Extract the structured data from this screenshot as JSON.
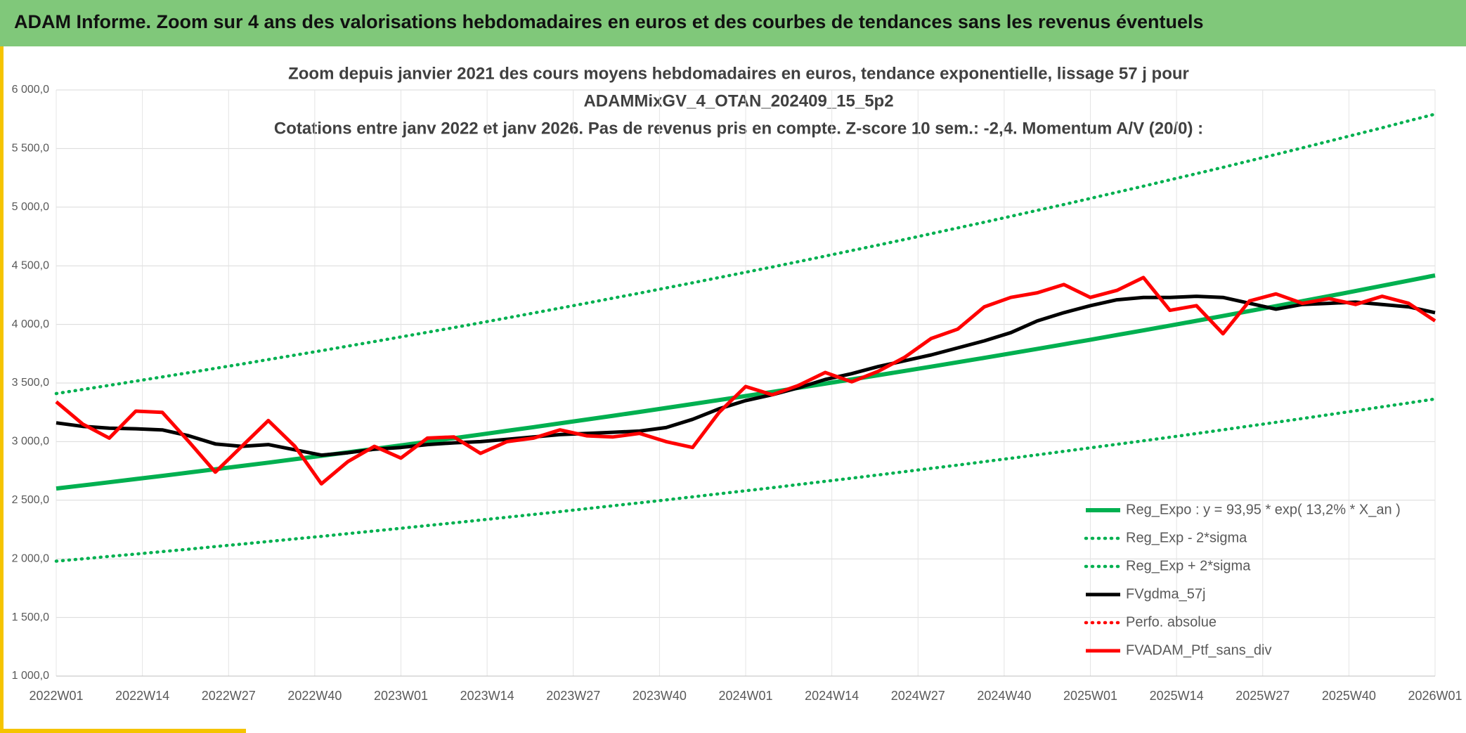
{
  "header": {
    "title": "ADAM Informe. Zoom sur 4 ans des valorisations hebdomadaires en euros et des courbes de tendances sans les revenus éventuels"
  },
  "chart_data": {
    "type": "line",
    "title": [
      "Zoom depuis janvier 2021 des cours moyens hebdomadaires en euros, tendance exponentielle, lissage 57 j pour",
      "ADAMMixGV_4_OTAN_202409_15_5p2",
      "Cotations entre janv 2022 et janv 2026. Pas de revenus pris en compte. Z-score 10 sem.: -2,4. Momentum A/V (20/0) :"
    ],
    "x": [
      0,
      4,
      8,
      12,
      16,
      20,
      24,
      28,
      32,
      36,
      40,
      44,
      48,
      52,
      56,
      60,
      64,
      68,
      72,
      76,
      80,
      84,
      88,
      92,
      96,
      100,
      104,
      108,
      112,
      116,
      120,
      124,
      128,
      132,
      136,
      140,
      144,
      148,
      152,
      156,
      160,
      164,
      168,
      172,
      176,
      180,
      184,
      188,
      192,
      196,
      200,
      204,
      208
    ],
    "xlim": [
      0,
      208
    ],
    "xticks": [
      {
        "value": 0,
        "label": "2022W01"
      },
      {
        "value": 13,
        "label": "2022W14"
      },
      {
        "value": 26,
        "label": "2022W27"
      },
      {
        "value": 39,
        "label": "2022W40"
      },
      {
        "value": 52,
        "label": "2023W01"
      },
      {
        "value": 65,
        "label": "2023W14"
      },
      {
        "value": 78,
        "label": "2023W27"
      },
      {
        "value": 91,
        "label": "2023W40"
      },
      {
        "value": 104,
        "label": "2024W01"
      },
      {
        "value": 117,
        "label": "2024W14"
      },
      {
        "value": 130,
        "label": "2024W27"
      },
      {
        "value": 143,
        "label": "2024W40"
      },
      {
        "value": 156,
        "label": "2025W01"
      },
      {
        "value": 169,
        "label": "2025W14"
      },
      {
        "value": 182,
        "label": "2025W27"
      },
      {
        "value": 195,
        "label": "2025W40"
      },
      {
        "value": 208,
        "label": "2026W01"
      }
    ],
    "ylim": [
      1000,
      6000
    ],
    "yticks": [
      {
        "value": 1000,
        "label": "1 000,0"
      },
      {
        "value": 1500,
        "label": "1 500,0"
      },
      {
        "value": 2000,
        "label": "2 000,0"
      },
      {
        "value": 2500,
        "label": "2 500,0"
      },
      {
        "value": 3000,
        "label": "3 000,0"
      },
      {
        "value": 3500,
        "label": "3 500,0"
      },
      {
        "value": 4000,
        "label": "4 000,0"
      },
      {
        "value": 4500,
        "label": "4 500,0"
      },
      {
        "value": 5000,
        "label": "5 000,0"
      },
      {
        "value": 5500,
        "label": "5 500,0"
      },
      {
        "value": 6000,
        "label": "6 000,0"
      }
    ],
    "grid": true,
    "legend": "lower right",
    "series": [
      {
        "name": "Reg_Expo : y = 93,95 * exp( 13,2% *  X_an )",
        "color": "#00b050",
        "style": "solid",
        "values": [
          2600,
          2626.7,
          2653.6,
          2680.8,
          2708.3,
          2736,
          2764.1,
          2792.4,
          2821,
          2849.9,
          2879.1,
          2908.6,
          2938.4,
          2968.5,
          2998.9,
          3029.6,
          3060.7,
          3092.1,
          3123.8,
          3155.8,
          3188.1,
          3220.8,
          3253.8,
          3287.1,
          3320.8,
          3354.8,
          3389.2,
          3423.9,
          3459,
          3494.5,
          3530.3,
          3566.5,
          3603,
          3639.9,
          3677.2,
          3714.9,
          3753,
          3791.5,
          3830.3,
          3869.6,
          3909.3,
          3949.3,
          3989.8,
          4030.7,
          4072,
          4113.7,
          4155.9,
          4198.5,
          4241.5,
          4285,
          4328.9,
          4373.3,
          4418.1
        ]
      },
      {
        "name": "Reg_Exp - 2*sigma",
        "color": "#00b050",
        "style": "dotted",
        "values": [
          1980,
          2000,
          2021,
          2041,
          2062,
          2083,
          2105,
          2126,
          2148,
          2170,
          2192,
          2215,
          2238,
          2261,
          2284,
          2307,
          2331,
          2355,
          2379,
          2403,
          2428,
          2453,
          2478,
          2503,
          2529,
          2555,
          2581,
          2607,
          2634,
          2661,
          2688,
          2716,
          2744,
          2772,
          2800,
          2829,
          2858,
          2887,
          2917,
          2947,
          2977,
          3007,
          3038,
          3069,
          3101,
          3133,
          3165,
          3197,
          3230,
          3263,
          3297,
          3330,
          3364
        ]
      },
      {
        "name": "Reg_Exp + 2*sigma",
        "color": "#00b050",
        "style": "dotted",
        "values": [
          3410,
          3445,
          3480,
          3516,
          3552,
          3588,
          3625,
          3662,
          3700,
          3738,
          3776,
          3815,
          3854,
          3893,
          3933,
          3973,
          4014,
          4055,
          4097,
          4139,
          4181,
          4224,
          4267,
          4311,
          4355,
          4400,
          4445,
          4490,
          4536,
          4583,
          4630,
          4677,
          4725,
          4774,
          4823,
          4872,
          4922,
          4973,
          5023,
          5075,
          5127,
          5179,
          5233,
          5286,
          5340,
          5395,
          5450,
          5506,
          5563,
          5620,
          5677,
          5736,
          5794
        ]
      },
      {
        "name": "FVgdma_57j",
        "color": "#000000",
        "style": "solid",
        "values": [
          3160,
          3130,
          3115,
          3110,
          3100,
          3050,
          2980,
          2960,
          2975,
          2930,
          2885,
          2905,
          2935,
          2950,
          2975,
          2990,
          3000,
          3020,
          3040,
          3060,
          3070,
          3080,
          3090,
          3120,
          3190,
          3280,
          3350,
          3400,
          3460,
          3530,
          3580,
          3640,
          3690,
          3740,
          3800,
          3860,
          3930,
          4030,
          4100,
          4160,
          4210,
          4230,
          4230,
          4240,
          4230,
          4180,
          4130,
          4170,
          4180,
          4190,
          4170,
          4150,
          4100
        ]
      },
      {
        "name": "Perfo. absolue",
        "color": "#ff0000",
        "style": "dotted",
        "values": [
          null,
          null,
          null,
          null,
          null,
          null,
          null,
          null,
          null,
          null,
          null,
          null,
          null,
          null,
          null,
          null,
          null,
          null,
          null,
          null,
          null,
          null,
          null,
          null,
          null,
          null,
          null,
          null,
          null,
          null,
          null,
          null,
          null,
          null,
          null,
          null,
          null,
          null,
          null,
          null,
          null,
          null,
          null,
          null,
          null,
          null,
          null,
          null,
          null,
          null,
          null,
          null,
          null
        ]
      },
      {
        "name": "FVADAM_Ptf_sans_div",
        "color": "#ff0000",
        "style": "solid",
        "values": [
          3340,
          3150,
          3030,
          3260,
          3250,
          3000,
          2740,
          2960,
          3180,
          2960,
          2640,
          2830,
          2960,
          2860,
          3030,
          3040,
          2900,
          3000,
          3030,
          3100,
          3050,
          3040,
          3070,
          3000,
          2950,
          3250,
          3470,
          3400,
          3480,
          3590,
          3510,
          3600,
          3720,
          3880,
          3960,
          4150,
          4230,
          4270,
          4340,
          4230,
          4290,
          4400,
          4120,
          4160,
          3920,
          4200,
          4260,
          4180,
          4220,
          4170,
          4240,
          4180,
          4030
        ]
      }
    ]
  }
}
